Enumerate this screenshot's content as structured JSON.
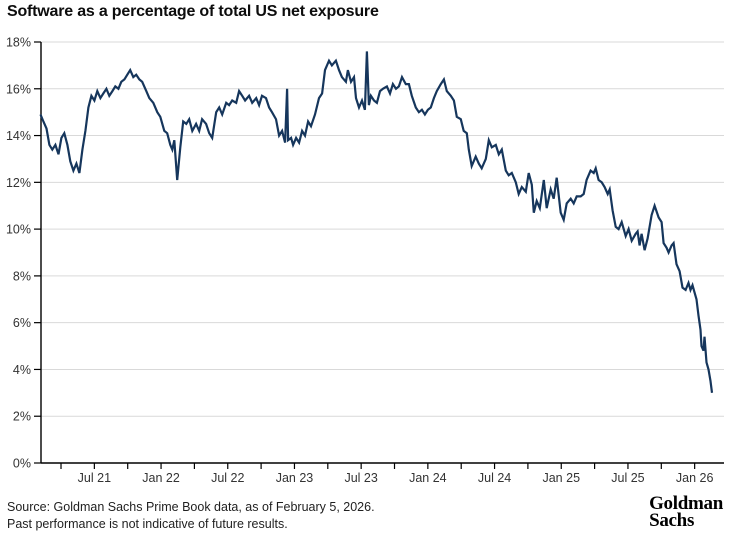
{
  "header": {
    "title": "Software as a percentage of total US net exposure"
  },
  "chart_data": {
    "type": "line",
    "title": "Software as a percentage of total US net exposure",
    "xlabel": "",
    "ylabel": "",
    "ylim": [
      0,
      18
    ],
    "xlim": [
      2021.1,
      2026.22
    ],
    "grid": "horizontal",
    "legend": "none",
    "line_color": "#16365c",
    "axis_color": "#000000",
    "grid_color": "#d9d9d9",
    "y_ticks": [
      {
        "value": 0,
        "label": "0%"
      },
      {
        "value": 2,
        "label": "2%"
      },
      {
        "value": 4,
        "label": "4%"
      },
      {
        "value": 6,
        "label": "6%"
      },
      {
        "value": 8,
        "label": "8%"
      },
      {
        "value": 10,
        "label": "10%"
      },
      {
        "value": 12,
        "label": "12%"
      },
      {
        "value": 14,
        "label": "14%"
      },
      {
        "value": 16,
        "label": "16%"
      },
      {
        "value": 18,
        "label": "18%"
      }
    ],
    "x_major_ticks": [
      {
        "value": 2021.5,
        "label": "Jul 21"
      },
      {
        "value": 2022.0,
        "label": "Jan 22"
      },
      {
        "value": 2022.5,
        "label": "Jul 22"
      },
      {
        "value": 2023.0,
        "label": "Jan 23"
      },
      {
        "value": 2023.5,
        "label": "Jul 23"
      },
      {
        "value": 2024.0,
        "label": "Jan 24"
      },
      {
        "value": 2024.5,
        "label": "Jul 24"
      },
      {
        "value": 2025.0,
        "label": "Jan 25"
      },
      {
        "value": 2025.5,
        "label": "Jul 25"
      },
      {
        "value": 2026.0,
        "label": "Jan 26"
      }
    ],
    "x_minor_tick_step": 0.25,
    "series": [
      {
        "name": "Software share of total US net exposure (%)",
        "points": [
          [
            2021.096,
            14.9
          ],
          [
            2021.118,
            14.6
          ],
          [
            2021.141,
            14.3
          ],
          [
            2021.163,
            13.6
          ],
          [
            2021.185,
            13.4
          ],
          [
            2021.208,
            13.6
          ],
          [
            2021.231,
            13.2
          ],
          [
            2021.253,
            13.9
          ],
          [
            2021.275,
            14.1
          ],
          [
            2021.298,
            13.6
          ],
          [
            2021.32,
            12.9
          ],
          [
            2021.343,
            12.5
          ],
          [
            2021.365,
            12.8
          ],
          [
            2021.388,
            12.4
          ],
          [
            2021.41,
            13.4
          ],
          [
            2021.433,
            14.2
          ],
          [
            2021.455,
            15.2
          ],
          [
            2021.478,
            15.7
          ],
          [
            2021.5,
            15.5
          ],
          [
            2021.522,
            15.9
          ],
          [
            2021.545,
            15.6
          ],
          [
            2021.567,
            15.8
          ],
          [
            2021.59,
            16.0
          ],
          [
            2021.612,
            15.7
          ],
          [
            2021.635,
            15.9
          ],
          [
            2021.657,
            16.1
          ],
          [
            2021.68,
            16.0
          ],
          [
            2021.702,
            16.3
          ],
          [
            2021.725,
            16.4
          ],
          [
            2021.747,
            16.6
          ],
          [
            2021.769,
            16.8
          ],
          [
            2021.792,
            16.5
          ],
          [
            2021.814,
            16.6
          ],
          [
            2021.837,
            16.4
          ],
          [
            2021.859,
            16.3
          ],
          [
            2021.889,
            15.9
          ],
          [
            2021.912,
            15.6
          ],
          [
            2021.942,
            15.4
          ],
          [
            2021.972,
            15.0
          ],
          [
            2021.994,
            14.8
          ],
          [
            2022.024,
            14.2
          ],
          [
            2022.046,
            14.1
          ],
          [
            2022.069,
            13.6
          ],
          [
            2022.084,
            13.4
          ],
          [
            2022.099,
            13.8
          ],
          [
            2022.121,
            12.1
          ],
          [
            2022.144,
            13.5
          ],
          [
            2022.166,
            14.6
          ],
          [
            2022.189,
            14.5
          ],
          [
            2022.211,
            14.7
          ],
          [
            2022.234,
            14.2
          ],
          [
            2022.263,
            14.5
          ],
          [
            2022.286,
            14.2
          ],
          [
            2022.308,
            14.7
          ],
          [
            2022.338,
            14.5
          ],
          [
            2022.361,
            14.1
          ],
          [
            2022.383,
            13.9
          ],
          [
            2022.413,
            15.0
          ],
          [
            2022.436,
            15.2
          ],
          [
            2022.458,
            14.9
          ],
          [
            2022.488,
            15.4
          ],
          [
            2022.51,
            15.3
          ],
          [
            2022.533,
            15.5
          ],
          [
            2022.563,
            15.4
          ],
          [
            2022.585,
            15.9
          ],
          [
            2022.608,
            15.7
          ],
          [
            2022.63,
            15.5
          ],
          [
            2022.66,
            15.7
          ],
          [
            2022.683,
            15.4
          ],
          [
            2022.713,
            15.6
          ],
          [
            2022.735,
            15.3
          ],
          [
            2022.757,
            15.7
          ],
          [
            2022.787,
            15.6
          ],
          [
            2022.81,
            15.2
          ],
          [
            2022.832,
            15.0
          ],
          [
            2022.862,
            14.7
          ],
          [
            2022.885,
            14.0
          ],
          [
            2022.907,
            14.2
          ],
          [
            2022.93,
            13.7
          ],
          [
            2022.945,
            16.0
          ],
          [
            2022.952,
            13.8
          ],
          [
            2022.975,
            13.9
          ],
          [
            2022.99,
            13.6
          ],
          [
            2023.012,
            13.9
          ],
          [
            2023.035,
            13.7
          ],
          [
            2023.057,
            14.2
          ],
          [
            2023.079,
            14.0
          ],
          [
            2023.102,
            14.6
          ],
          [
            2023.124,
            14.4
          ],
          [
            2023.154,
            14.9
          ],
          [
            2023.184,
            15.6
          ],
          [
            2023.207,
            15.8
          ],
          [
            2023.229,
            16.8
          ],
          [
            2023.259,
            17.2
          ],
          [
            2023.281,
            17.0
          ],
          [
            2023.311,
            17.2
          ],
          [
            2023.334,
            16.8
          ],
          [
            2023.356,
            16.5
          ],
          [
            2023.386,
            16.3
          ],
          [
            2023.401,
            16.8
          ],
          [
            2023.424,
            16.3
          ],
          [
            2023.446,
            16.5
          ],
          [
            2023.461,
            15.6
          ],
          [
            2023.484,
            15.2
          ],
          [
            2023.506,
            15.5
          ],
          [
            2023.528,
            15.1
          ],
          [
            2023.543,
            17.6
          ],
          [
            2023.558,
            15.3
          ],
          [
            2023.573,
            15.7
          ],
          [
            2023.596,
            15.5
          ],
          [
            2023.618,
            15.4
          ],
          [
            2023.641,
            15.9
          ],
          [
            2023.663,
            16.0
          ],
          [
            2023.693,
            16.1
          ],
          [
            2023.716,
            15.8
          ],
          [
            2023.738,
            16.2
          ],
          [
            2023.761,
            16.0
          ],
          [
            2023.783,
            16.1
          ],
          [
            2023.806,
            16.5
          ],
          [
            2023.835,
            16.2
          ],
          [
            2023.858,
            16.2
          ],
          [
            2023.88,
            15.7
          ],
          [
            2023.91,
            15.2
          ],
          [
            2023.933,
            15.0
          ],
          [
            2023.955,
            15.1
          ],
          [
            2023.978,
            14.9
          ],
          [
            2024.0,
            15.1
          ],
          [
            2024.022,
            15.2
          ],
          [
            2024.045,
            15.6
          ],
          [
            2024.067,
            15.9
          ],
          [
            2024.097,
            16.2
          ],
          [
            2024.12,
            16.4
          ],
          [
            2024.142,
            15.9
          ],
          [
            2024.172,
            15.7
          ],
          [
            2024.195,
            15.5
          ],
          [
            2024.217,
            14.8
          ],
          [
            2024.247,
            14.7
          ],
          [
            2024.269,
            14.2
          ],
          [
            2024.292,
            14.1
          ],
          [
            2024.307,
            13.4
          ],
          [
            2024.329,
            12.7
          ],
          [
            2024.359,
            13.1
          ],
          [
            2024.382,
            12.8
          ],
          [
            2024.404,
            12.6
          ],
          [
            2024.434,
            13.0
          ],
          [
            2024.457,
            13.8
          ],
          [
            2024.479,
            13.5
          ],
          [
            2024.509,
            13.6
          ],
          [
            2024.532,
            13.2
          ],
          [
            2024.554,
            13.4
          ],
          [
            2024.584,
            12.5
          ],
          [
            2024.606,
            12.3
          ],
          [
            2024.629,
            12.4
          ],
          [
            2024.659,
            12.0
          ],
          [
            2024.681,
            11.5
          ],
          [
            2024.704,
            11.8
          ],
          [
            2024.734,
            11.6
          ],
          [
            2024.756,
            12.4
          ],
          [
            2024.779,
            11.9
          ],
          [
            2024.794,
            10.7
          ],
          [
            2024.816,
            11.2
          ],
          [
            2024.839,
            10.9
          ],
          [
            2024.869,
            12.1
          ],
          [
            2024.891,
            10.9
          ],
          [
            2024.921,
            11.7
          ],
          [
            2024.943,
            11.3
          ],
          [
            2024.966,
            12.2
          ],
          [
            2024.996,
            10.7
          ],
          [
            2025.018,
            10.4
          ],
          [
            2025.041,
            11.1
          ],
          [
            2025.071,
            11.3
          ],
          [
            2025.093,
            11.1
          ],
          [
            2025.116,
            11.4
          ],
          [
            2025.146,
            11.4
          ],
          [
            2025.168,
            11.5
          ],
          [
            2025.19,
            12.1
          ],
          [
            2025.22,
            12.5
          ],
          [
            2025.243,
            12.4
          ],
          [
            2025.258,
            12.6
          ],
          [
            2025.28,
            12.1
          ],
          [
            2025.303,
            12.0
          ],
          [
            2025.325,
            11.8
          ],
          [
            2025.348,
            11.5
          ],
          [
            2025.363,
            11.7
          ],
          [
            2025.385,
            10.8
          ],
          [
            2025.408,
            10.1
          ],
          [
            2025.43,
            10.0
          ],
          [
            2025.453,
            10.3
          ],
          [
            2025.483,
            9.7
          ],
          [
            2025.505,
            10.0
          ],
          [
            2025.528,
            9.5
          ],
          [
            2025.558,
            9.8
          ],
          [
            2025.572,
            9.9
          ],
          [
            2025.587,
            9.3
          ],
          [
            2025.602,
            9.8
          ],
          [
            2025.625,
            9.1
          ],
          [
            2025.647,
            9.6
          ],
          [
            2025.677,
            10.6
          ],
          [
            2025.7,
            11.0
          ],
          [
            2025.73,
            10.5
          ],
          [
            2025.752,
            10.3
          ],
          [
            2025.767,
            9.4
          ],
          [
            2025.79,
            9.2
          ],
          [
            2025.805,
            9.0
          ],
          [
            2025.827,
            9.3
          ],
          [
            2025.842,
            9.4
          ],
          [
            2025.864,
            8.5
          ],
          [
            2025.887,
            8.2
          ],
          [
            2025.909,
            7.5
          ],
          [
            2025.932,
            7.4
          ],
          [
            2025.954,
            7.7
          ],
          [
            2025.969,
            7.4
          ],
          [
            2025.984,
            7.6
          ],
          [
            2025.999,
            7.3
          ],
          [
            2026.014,
            7.0
          ],
          [
            2026.029,
            6.3
          ],
          [
            2026.044,
            5.7
          ],
          [
            2026.051,
            5.0
          ],
          [
            2026.066,
            4.8
          ],
          [
            2026.074,
            5.4
          ],
          [
            2026.089,
            4.3
          ],
          [
            2026.104,
            4.0
          ],
          [
            2026.119,
            3.5
          ],
          [
            2026.13,
            3.0
          ]
        ]
      }
    ]
  },
  "footer": {
    "source_line1": "Source: Goldman Sachs Prime Book data, as of February 5, 2026.",
    "source_line2": "Past performance is not indicative of future results.",
    "logo_line1": "Goldman",
    "logo_line2": "Sachs"
  }
}
